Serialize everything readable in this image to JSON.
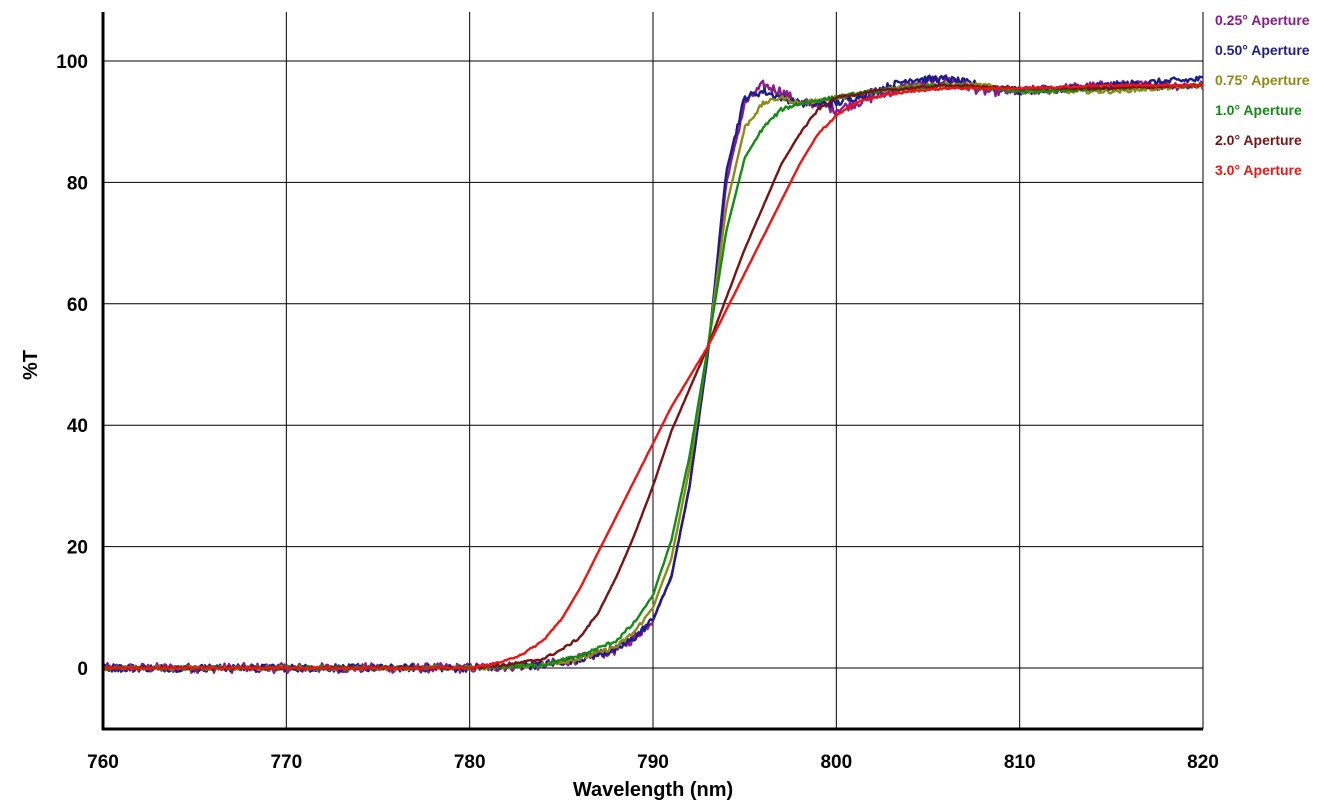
{
  "chart_data": {
    "type": "line",
    "title": "",
    "xlabel": "Wavelength (nm)",
    "ylabel": "%T",
    "xlim": [
      760,
      820
    ],
    "ylim": [
      -10,
      108
    ],
    "x_ticks": [
      760,
      770,
      780,
      790,
      800,
      810,
      820
    ],
    "y_ticks": [
      0,
      20,
      40,
      60,
      80,
      100
    ],
    "grid": true,
    "legend_position": "top-right",
    "series": [
      {
        "name": "0.25° Aperture",
        "color": "#8B1A8B",
        "x": [
          760,
          770,
          780,
          784,
          786,
          788,
          789,
          790,
          791,
          792,
          793,
          794,
          795,
          796,
          797,
          798,
          799,
          800,
          802,
          804,
          806,
          808,
          810,
          815,
          820
        ],
        "y": [
          0,
          0,
          0,
          0.5,
          1.5,
          3,
          5,
          8,
          15,
          30,
          52,
          80,
          93,
          96,
          95,
          93,
          93,
          92,
          94,
          96,
          97,
          95,
          95,
          96,
          96
        ]
      },
      {
        "name": "0.50° Aperture",
        "color": "#1C1C8C",
        "x": [
          760,
          770,
          780,
          784,
          786,
          788,
          789,
          790,
          791,
          792,
          793,
          794,
          795,
          796,
          797,
          798,
          799,
          800,
          802,
          804,
          806,
          808,
          810,
          815,
          820
        ],
        "y": [
          0,
          0,
          0,
          0.5,
          1.5,
          3,
          5,
          8,
          15,
          30,
          52,
          82,
          94,
          95,
          94,
          93,
          93,
          93,
          95,
          97,
          97,
          96,
          95,
          96,
          97
        ]
      },
      {
        "name": "0.75° Aperture",
        "color": "#8C8C14",
        "x": [
          760,
          770,
          780,
          784,
          786,
          788,
          789,
          790,
          791,
          792,
          793,
          794,
          795,
          796,
          797,
          798,
          800,
          802,
          804,
          806,
          808,
          810,
          815,
          820
        ],
        "y": [
          0,
          0,
          0,
          0.5,
          1.5,
          3.5,
          6,
          10,
          18,
          33,
          53,
          76,
          89,
          93,
          94,
          93,
          94,
          95,
          96,
          96,
          96,
          95,
          95,
          96
        ]
      },
      {
        "name": "1.0° Aperture",
        "color": "#148C14",
        "x": [
          760,
          770,
          780,
          784,
          786,
          788,
          789,
          790,
          791,
          792,
          793,
          794,
          795,
          796,
          797,
          798,
          799,
          800,
          802,
          804,
          806,
          808,
          810,
          815,
          820
        ],
        "y": [
          0,
          0,
          0,
          0.5,
          2,
          4.5,
          7.5,
          12,
          21,
          35,
          53,
          72,
          84,
          89,
          92,
          93,
          93.5,
          94,
          95,
          95.5,
          96,
          95.5,
          95,
          95.5,
          96
        ]
      },
      {
        "name": "2.0° Aperture",
        "color": "#7A1414",
        "x": [
          760,
          770,
          780,
          782,
          784,
          785,
          786,
          787,
          788,
          789,
          790,
          791,
          792,
          793,
          794,
          795,
          796,
          797,
          798,
          799,
          800,
          802,
          804,
          806,
          810,
          815,
          820
        ],
        "y": [
          0,
          0,
          0,
          0.5,
          1.5,
          3,
          5,
          9,
          15,
          22,
          30,
          39,
          46,
          53,
          61,
          69,
          76,
          83,
          88,
          92,
          94,
          95,
          95.5,
          96,
          95.5,
          95.5,
          96
        ]
      },
      {
        "name": "3.0° Aperture",
        "color": "#F01414",
        "x": [
          760,
          770,
          780,
          781,
          782,
          783,
          784,
          785,
          786,
          787,
          788,
          789,
          790,
          791,
          792,
          793,
          794,
          795,
          796,
          797,
          798,
          799,
          800,
          801,
          802,
          804,
          806,
          810,
          815,
          820
        ],
        "y": [
          0,
          0,
          0,
          0.5,
          1.2,
          2.5,
          4.5,
          8,
          13,
          19,
          25,
          31,
          37,
          43,
          48,
          53,
          59,
          65,
          71,
          77,
          83,
          88,
          91,
          93,
          94,
          95,
          95.5,
          95.5,
          96,
          96
        ]
      }
    ]
  }
}
